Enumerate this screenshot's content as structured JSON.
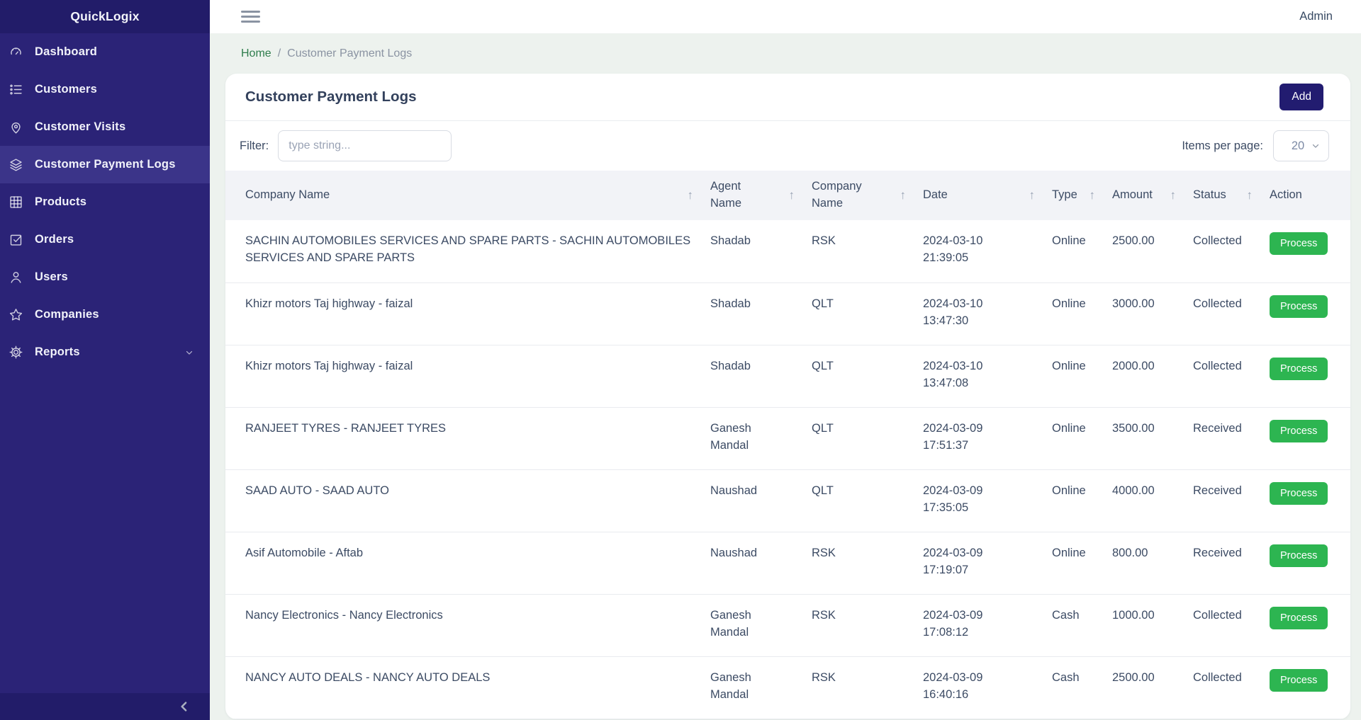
{
  "app": {
    "brand": "QuickLogix",
    "user_menu": "Admin"
  },
  "sidebar": {
    "items": [
      {
        "label": "Dashboard",
        "icon": "gauge-icon",
        "active": false,
        "has_submenu": false
      },
      {
        "label": "Customers",
        "icon": "list-icon",
        "active": false,
        "has_submenu": false
      },
      {
        "label": "Customer Visits",
        "icon": "map-pin-icon",
        "active": false,
        "has_submenu": false
      },
      {
        "label": "Customer Payment Logs",
        "icon": "layers-icon",
        "active": true,
        "has_submenu": false
      },
      {
        "label": "Products",
        "icon": "grid-icon",
        "active": false,
        "has_submenu": false
      },
      {
        "label": "Orders",
        "icon": "check-square-icon",
        "active": false,
        "has_submenu": false
      },
      {
        "label": "Users",
        "icon": "user-icon",
        "active": false,
        "has_submenu": false
      },
      {
        "label": "Companies",
        "icon": "star-icon",
        "active": false,
        "has_submenu": false
      },
      {
        "label": "Reports",
        "icon": "gear-icon",
        "active": false,
        "has_submenu": true
      }
    ]
  },
  "breadcrumb": {
    "home": "Home",
    "separator": "/",
    "current": "Customer Payment Logs"
  },
  "page": {
    "title": "Customer Payment Logs",
    "add_button_label": "Add"
  },
  "filter": {
    "label": "Filter:",
    "placeholder": "type string...",
    "items_per_page_label": "Items per page:",
    "items_per_page_value": "20"
  },
  "table": {
    "sort_indicator": "↑",
    "action_button_label": "Process",
    "columns": [
      {
        "key": "company",
        "label": "Company Name",
        "sortable": true,
        "wrap": false
      },
      {
        "key": "agent",
        "label": "Agent Name",
        "sortable": true,
        "wrap": true
      },
      {
        "key": "company_code",
        "label": "Company Name",
        "sortable": true,
        "wrap": true
      },
      {
        "key": "datetime",
        "label": "Date",
        "sortable": true,
        "wrap": false
      },
      {
        "key": "type",
        "label": "Type",
        "sortable": true,
        "wrap": false
      },
      {
        "key": "amount",
        "label": "Amount",
        "sortable": true,
        "wrap": false
      },
      {
        "key": "status",
        "label": "Status",
        "sortable": true,
        "wrap": false
      },
      {
        "key": "action",
        "label": "Action",
        "sortable": false,
        "wrap": false
      }
    ],
    "rows": [
      {
        "company": "SACHIN AUTOMOBILES SERVICES AND SPARE PARTS - SACHIN AUTOMOBILES SERVICES AND SPARE PARTS",
        "agent": "Shadab",
        "company_code": "RSK",
        "date": "2024-03-10",
        "time": "21:39:05",
        "type": "Online",
        "amount": "2500.00",
        "status": "Collected"
      },
      {
        "company": "Khizr motors Taj highway - faizal",
        "agent": "Shadab",
        "company_code": "QLT",
        "date": "2024-03-10",
        "time": "13:47:30",
        "type": "Online",
        "amount": "3000.00",
        "status": "Collected"
      },
      {
        "company": "Khizr motors Taj highway - faizal",
        "agent": "Shadab",
        "company_code": "QLT",
        "date": "2024-03-10",
        "time": "13:47:08",
        "type": "Online",
        "amount": "2000.00",
        "status": "Collected"
      },
      {
        "company": "RANJEET TYRES - RANJEET TYRES",
        "agent": "Ganesh Mandal",
        "company_code": "QLT",
        "date": "2024-03-09",
        "time": "17:51:37",
        "type": "Online",
        "amount": "3500.00",
        "status": "Received"
      },
      {
        "company": "SAAD AUTO - SAAD AUTO",
        "agent": "Naushad",
        "company_code": "QLT",
        "date": "2024-03-09",
        "time": "17:35:05",
        "type": "Online",
        "amount": "4000.00",
        "status": "Received"
      },
      {
        "company": "Asif Automobile - Aftab",
        "agent": "Naushad",
        "company_code": "RSK",
        "date": "2024-03-09",
        "time": "17:19:07",
        "type": "Online",
        "amount": "800.00",
        "status": "Received"
      },
      {
        "company": "Nancy Electronics - Nancy Electronics",
        "agent": "Ganesh Mandal",
        "company_code": "RSK",
        "date": "2024-03-09",
        "time": "17:08:12",
        "type": "Cash",
        "amount": "1000.00",
        "status": "Collected"
      },
      {
        "company": "NANCY AUTO DEALS - NANCY AUTO DEALS",
        "agent": "Ganesh Mandal",
        "company_code": "RSK",
        "date": "2024-03-09",
        "time": "16:40:16",
        "type": "Cash",
        "amount": "2500.00",
        "status": "Collected"
      }
    ]
  },
  "colors": {
    "sidebar": "#2b2377",
    "sidebar_dark": "#221c69",
    "sidebar_active": "#3b3489",
    "accent_add": "#221c70",
    "success": "#2db551",
    "page_bg": "#edf2ee",
    "text": "#3c4b64",
    "muted": "#8a93a2",
    "breadcrumb_home": "#2e7d4c"
  }
}
